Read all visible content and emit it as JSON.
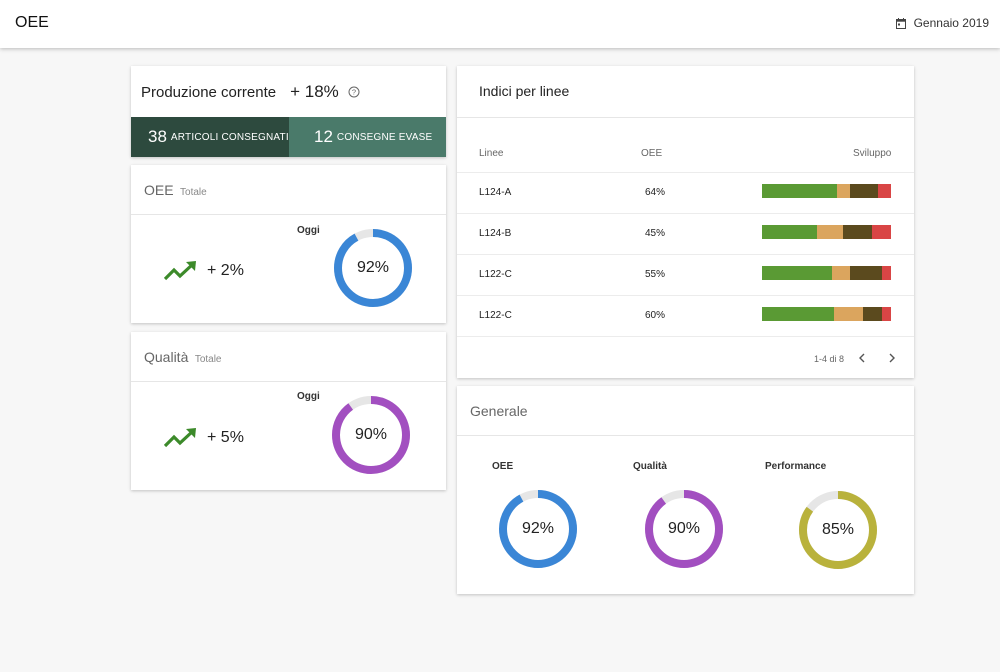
{
  "app": {
    "title": "OEE"
  },
  "date": {
    "label": "Gennaio 2019",
    "icon": "calendar-icon"
  },
  "produzione": {
    "title": "Produzione corrente",
    "delta": "+ 18%",
    "help_icon": "help-circle-icon",
    "segments": [
      {
        "count": "38",
        "label": "ARTICOLI CONSEGNATI",
        "color": "#2d4a3e"
      },
      {
        "count": "12",
        "label": "CONSEGNE EVASE",
        "color": "#4a7a6a"
      }
    ]
  },
  "oee_card": {
    "title": "OEE",
    "subtitle": "Totale",
    "trend_icon": "trending-up-icon",
    "trend": "+ 2%",
    "today_label": "Oggi",
    "value_label": "92%",
    "value": 0.92,
    "color": "#3a86d6"
  },
  "qualita_card": {
    "title": "Qualità",
    "subtitle": "Totale",
    "trend_icon": "trending-up-icon",
    "trend": "+ 5%",
    "today_label": "Oggi",
    "value_label": "90%",
    "value": 0.9,
    "color": "#a24fc0"
  },
  "indici": {
    "title": "Indici per linee",
    "columns": [
      "Linee",
      "OEE",
      "Sviluppo"
    ],
    "rows": [
      {
        "linea": "L124-A",
        "oee": "64%",
        "parts": [
          0.58,
          0.1,
          0.22,
          0.1
        ]
      },
      {
        "linea": "L124-B",
        "oee": "45%",
        "parts": [
          0.43,
          0.2,
          0.22,
          0.15
        ]
      },
      {
        "linea": "L122-C",
        "oee": "55%",
        "parts": [
          0.54,
          0.14,
          0.25,
          0.07
        ]
      },
      {
        "linea": "L122-C",
        "oee": "60%",
        "parts": [
          0.56,
          0.22,
          0.15,
          0.07
        ]
      }
    ],
    "segment_colors": [
      "#5a9a34",
      "#dba55e",
      "#5b4a1e",
      "#d94545"
    ],
    "pagination": "1-4 di 8",
    "prev_icon": "chevron-left-icon",
    "next_icon": "chevron-right-icon"
  },
  "generale": {
    "title": "Generale",
    "items": [
      {
        "label": "OEE",
        "value_label": "92%",
        "value": 0.92,
        "color": "#3a86d6"
      },
      {
        "label": "Qualità",
        "value_label": "90%",
        "value": 0.9,
        "color": "#a24fc0"
      },
      {
        "label": "Performance",
        "value_label": "85%",
        "value": 0.85,
        "color": "#b9b23c"
      }
    ]
  }
}
